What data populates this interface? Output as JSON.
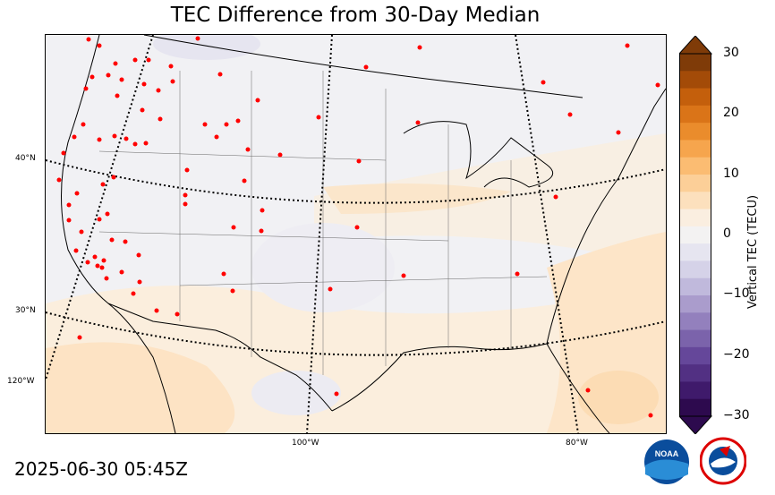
{
  "title": "TEC Difference from 30-Day Median",
  "timestamp": "2025-06-30 05:45Z",
  "lat_labels": [
    "40°N",
    "30°N",
    "120°W"
  ],
  "lon_labels": [
    "100°W",
    "80°W"
  ],
  "colorbar": {
    "label": "Vertical TEC (TECU)",
    "ticks": [
      "30",
      "20",
      "10",
      "0",
      "−10",
      "−20",
      "−30"
    ],
    "range": [
      -30,
      30
    ],
    "colors": [
      "#2d0a4e",
      "#3f1a6b",
      "#523083",
      "#65479a",
      "#7b63ab",
      "#9380bd",
      "#aa9ccc",
      "#c0b9dc",
      "#d5d2e8",
      "#e6e5f0",
      "#f3f2f2",
      "#faeee0",
      "#fce0bd",
      "#fccf98",
      "#fbbc72",
      "#f6a54d",
      "#ea8c2c",
      "#da7418",
      "#c45f0c",
      "#a34b08",
      "#7f3b08"
    ]
  },
  "logos": [
    "NOAA",
    "NATIONAL WEATHER SERVICE"
  ]
}
